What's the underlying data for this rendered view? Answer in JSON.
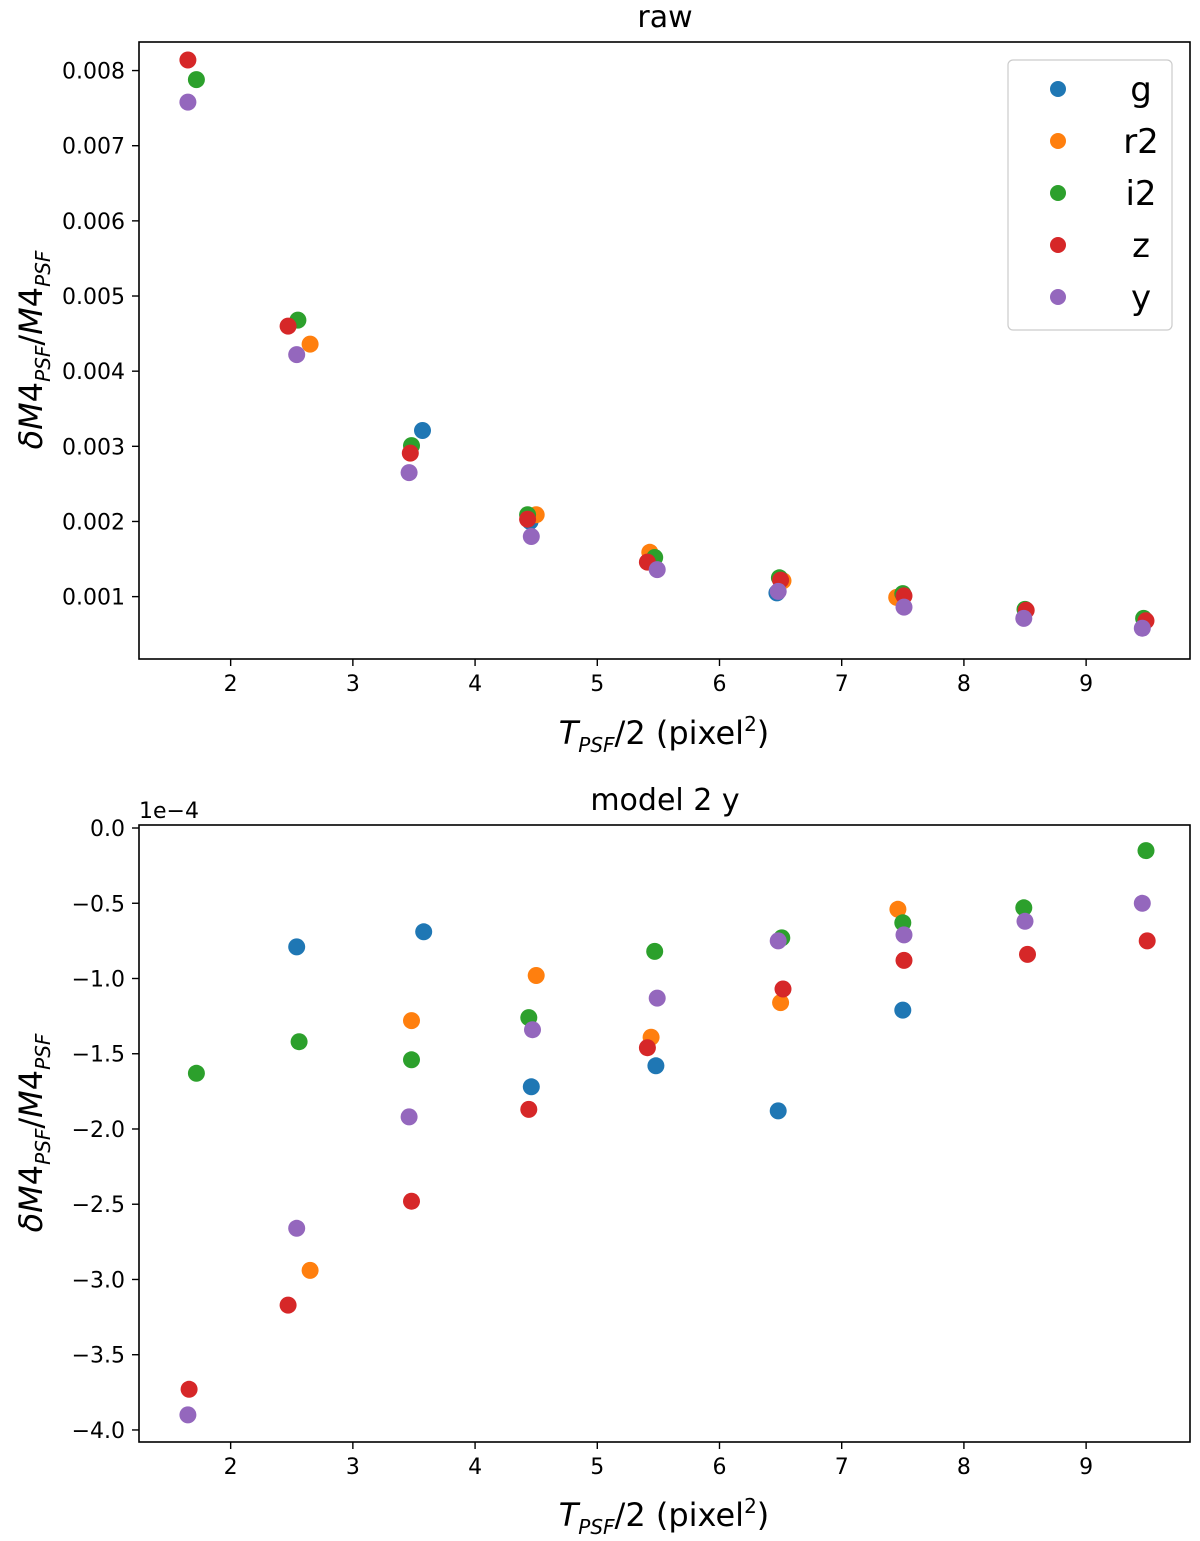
{
  "colors": {
    "g": "#1f77b4",
    "r2": "#ff7f0e",
    "i2": "#2ca02c",
    "z": "#d62728",
    "y": "#9467bd"
  },
  "chart_data": [
    {
      "type": "scatter",
      "title": "raw",
      "xlabel": "T_PSF/2 (pixel^2)",
      "ylabel": "δM4_PSF/M4_PSF",
      "xlim": [
        1.25,
        9.85
      ],
      "ylim": [
        0.00017,
        0.00838
      ],
      "xticks": [
        2,
        3,
        4,
        5,
        6,
        7,
        8,
        9
      ],
      "yticks": [
        0.001,
        0.002,
        0.003,
        0.004,
        0.005,
        0.006,
        0.007,
        0.008
      ],
      "ytick_labels": [
        "0.001",
        "0.002",
        "0.003",
        "0.004",
        "0.005",
        "0.006",
        "0.007",
        "0.008"
      ],
      "legend": {
        "position": "top-right",
        "entries": [
          "g",
          "r2",
          "i2",
          "z",
          "y"
        ]
      },
      "series": [
        {
          "name": "g",
          "x": [
            3.57,
            4.45,
            6.47
          ],
          "y": [
            0.00321,
            0.002,
            0.00105
          ]
        },
        {
          "name": "r2",
          "x": [
            2.65,
            4.5,
            5.43,
            6.52,
            7.45
          ],
          "y": [
            0.00436,
            0.00209,
            0.00159,
            0.00121,
            0.00099
          ]
        },
        {
          "name": "i2",
          "x": [
            1.72,
            2.55,
            3.48,
            4.43,
            5.47,
            6.49,
            7.5,
            8.5,
            9.47
          ],
          "y": [
            0.00788,
            0.00468,
            0.00301,
            0.00209,
            0.00152,
            0.00125,
            0.00104,
            0.00083,
            0.00071
          ]
        },
        {
          "name": "z",
          "x": [
            1.65,
            2.47,
            3.47,
            4.43,
            5.41,
            6.5,
            7.51,
            8.51,
            9.49
          ],
          "y": [
            0.00814,
            0.0046,
            0.00291,
            0.00203,
            0.00146,
            0.00122,
            0.00101,
            0.00082,
            0.00068
          ]
        },
        {
          "name": "y",
          "x": [
            1.65,
            2.54,
            3.46,
            4.46,
            5.49,
            6.48,
            7.51,
            8.49,
            9.46
          ],
          "y": [
            0.00758,
            0.00422,
            0.00265,
            0.0018,
            0.00136,
            0.00107,
            0.00086,
            0.00071,
            0.00058
          ]
        }
      ]
    },
    {
      "type": "scatter",
      "title": "model 2 y",
      "xlabel": "T_PSF/2 (pixel^2)",
      "ylabel": "δM4_PSF/M4_PSF",
      "offset_text": "1e−4",
      "xlim": [
        1.25,
        9.85
      ],
      "ylim": [
        -4.08,
        0.02
      ],
      "xticks": [
        2,
        3,
        4,
        5,
        6,
        7,
        8,
        9
      ],
      "yticks": [
        -4.0,
        -3.5,
        -3.0,
        -2.5,
        -2.0,
        -1.5,
        -1.0,
        -0.5,
        0.0
      ],
      "ytick_labels": [
        "−4.0",
        "−3.5",
        "−3.0",
        "−2.5",
        "−2.0",
        "−1.5",
        "−1.0",
        "−0.5",
        "0.0"
      ],
      "series": [
        {
          "name": "g",
          "x": [
            2.54,
            3.58,
            4.46,
            5.48,
            6.48,
            7.5
          ],
          "y": [
            -0.79,
            -0.69,
            -1.72,
            -1.58,
            -1.88,
            -1.21
          ]
        },
        {
          "name": "r2",
          "x": [
            2.65,
            3.48,
            4.5,
            5.44,
            6.5,
            7.46
          ],
          "y": [
            -2.94,
            -1.28,
            -0.98,
            -1.39,
            -1.16,
            -0.54
          ]
        },
        {
          "name": "i2",
          "x": [
            1.72,
            2.56,
            3.48,
            4.44,
            5.47,
            6.51,
            7.5,
            8.49,
            9.49
          ],
          "y": [
            -1.63,
            -1.42,
            -1.54,
            -1.26,
            -0.82,
            -0.73,
            -0.63,
            -0.53,
            -0.15
          ]
        },
        {
          "name": "z",
          "x": [
            1.66,
            2.47,
            3.48,
            4.44,
            5.41,
            6.52,
            7.51,
            8.52,
            9.5
          ],
          "y": [
            -3.73,
            -3.17,
            -2.48,
            -1.87,
            -1.46,
            -1.07,
            -0.88,
            -0.84,
            -0.75
          ]
        },
        {
          "name": "y",
          "x": [
            1.65,
            2.54,
            3.46,
            4.47,
            5.49,
            6.48,
            7.51,
            8.5,
            9.46
          ],
          "y": [
            -3.9,
            -2.66,
            -1.92,
            -1.34,
            -1.13,
            -0.75,
            -0.71,
            -0.62,
            -0.5
          ]
        }
      ]
    }
  ]
}
